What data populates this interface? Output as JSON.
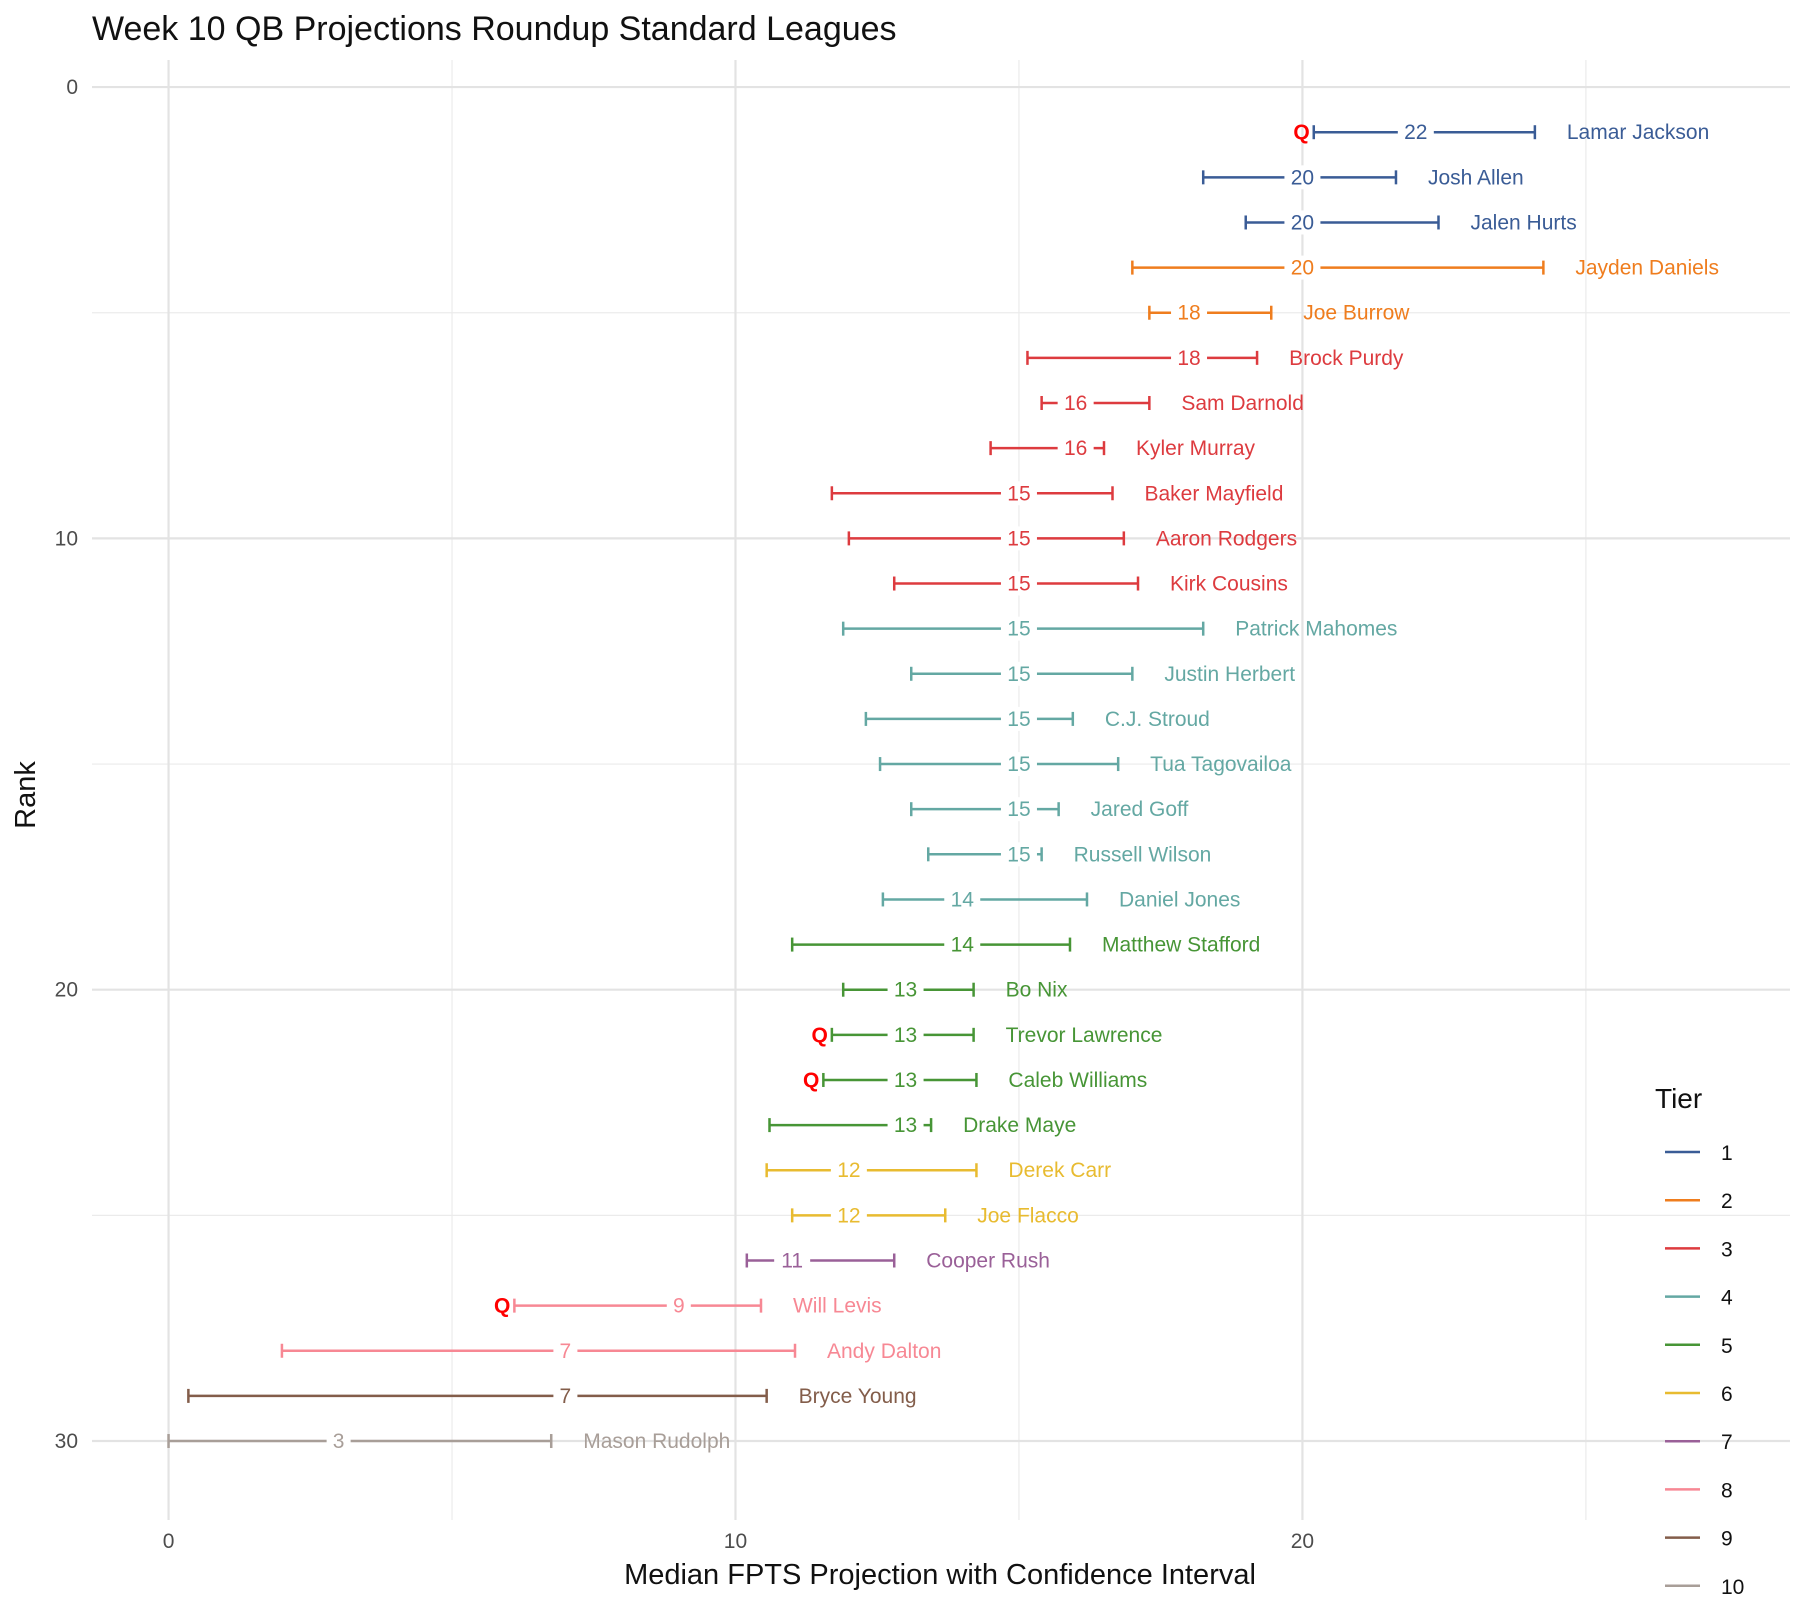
{
  "chart_data": {
    "type": "errorbar",
    "title": "Week 10 QB Projections Roundup Standard Leagues",
    "xlabel": "Median FPTS Projection with Confidence Interval",
    "ylabel": "Rank",
    "xlim": [
      -1.35,
      28.6
    ],
    "ylim": [
      -0.6,
      31.75
    ],
    "x_major_ticks": [
      0,
      10,
      20
    ],
    "x_minor_ticks": [
      5,
      15,
      25
    ],
    "y_major_ticks": [
      0,
      10,
      20,
      30
    ],
    "y_minor_ticks": [
      5,
      15,
      25
    ],
    "grid": true,
    "legend": {
      "title": "Tier",
      "position": "right",
      "entries": [
        {
          "label": "1",
          "color": "#3a5c96"
        },
        {
          "label": "2",
          "color": "#ef7d1e"
        },
        {
          "label": "3",
          "color": "#dd3b3f"
        },
        {
          "label": "4",
          "color": "#64a8a3"
        },
        {
          "label": "5",
          "color": "#479536"
        },
        {
          "label": "6",
          "color": "#e8bb30"
        },
        {
          "label": "7",
          "color": "#9a6098"
        },
        {
          "label": "8",
          "color": "#f78894"
        },
        {
          "label": "9",
          "color": "#835d4a"
        },
        {
          "label": "10",
          "color": "#a89e98"
        }
      ]
    },
    "points": [
      {
        "rank": 1,
        "player": "Lamar Jackson",
        "tier": 1,
        "median": 22,
        "low": 20.2,
        "high": 24.1,
        "q": true
      },
      {
        "rank": 2,
        "player": "Josh Allen",
        "tier": 1,
        "median": 20,
        "low": 18.25,
        "high": 21.65,
        "q": false
      },
      {
        "rank": 3,
        "player": "Jalen Hurts",
        "tier": 1,
        "median": 20,
        "low": 19.0,
        "high": 22.4,
        "q": false
      },
      {
        "rank": 4,
        "player": "Jayden Daniels",
        "tier": 2,
        "median": 20,
        "low": 17.0,
        "high": 24.25,
        "q": false
      },
      {
        "rank": 5,
        "player": "Joe Burrow",
        "tier": 2,
        "median": 18,
        "low": 17.3,
        "high": 19.45,
        "q": false
      },
      {
        "rank": 6,
        "player": "Brock Purdy",
        "tier": 3,
        "median": 18,
        "low": 15.15,
        "high": 19.2,
        "q": false
      },
      {
        "rank": 7,
        "player": "Sam Darnold",
        "tier": 3,
        "median": 16,
        "low": 15.4,
        "high": 17.3,
        "q": false
      },
      {
        "rank": 8,
        "player": "Kyler Murray",
        "tier": 3,
        "median": 16,
        "low": 14.5,
        "high": 16.5,
        "q": false
      },
      {
        "rank": 9,
        "player": "Baker Mayfield",
        "tier": 3,
        "median": 15,
        "low": 11.7,
        "high": 16.65,
        "q": false
      },
      {
        "rank": 10,
        "player": "Aaron Rodgers",
        "tier": 3,
        "median": 15,
        "low": 12.0,
        "high": 16.85,
        "q": false
      },
      {
        "rank": 11,
        "player": "Kirk Cousins",
        "tier": 3,
        "median": 15,
        "low": 12.8,
        "high": 17.1,
        "q": false
      },
      {
        "rank": 12,
        "player": "Patrick Mahomes",
        "tier": 4,
        "median": 15,
        "low": 11.9,
        "high": 18.25,
        "q": false
      },
      {
        "rank": 13,
        "player": "Justin Herbert",
        "tier": 4,
        "median": 15,
        "low": 13.1,
        "high": 17.0,
        "q": false
      },
      {
        "rank": 14,
        "player": "C.J. Stroud",
        "tier": 4,
        "median": 15,
        "low": 12.3,
        "high": 15.95,
        "q": false
      },
      {
        "rank": 15,
        "player": "Tua Tagovailoa",
        "tier": 4,
        "median": 15,
        "low": 12.55,
        "high": 16.75,
        "q": false
      },
      {
        "rank": 16,
        "player": "Jared Goff",
        "tier": 4,
        "median": 15,
        "low": 13.1,
        "high": 15.7,
        "q": false
      },
      {
        "rank": 17,
        "player": "Russell Wilson",
        "tier": 4,
        "median": 15,
        "low": 13.4,
        "high": 15.4,
        "q": false
      },
      {
        "rank": 18,
        "player": "Daniel Jones",
        "tier": 4,
        "median": 14,
        "low": 12.6,
        "high": 16.2,
        "q": false
      },
      {
        "rank": 19,
        "player": "Matthew Stafford",
        "tier": 5,
        "median": 14,
        "low": 11.0,
        "high": 15.9,
        "q": false
      },
      {
        "rank": 20,
        "player": "Bo Nix",
        "tier": 5,
        "median": 13,
        "low": 11.9,
        "high": 14.2,
        "q": false
      },
      {
        "rank": 21,
        "player": "Trevor Lawrence",
        "tier": 5,
        "median": 13,
        "low": 11.7,
        "high": 14.2,
        "q": true
      },
      {
        "rank": 22,
        "player": "Caleb Williams",
        "tier": 5,
        "median": 13,
        "low": 11.55,
        "high": 14.25,
        "q": true
      },
      {
        "rank": 23,
        "player": "Drake Maye",
        "tier": 5,
        "median": 13,
        "low": 10.6,
        "high": 13.45,
        "q": false
      },
      {
        "rank": 24,
        "player": "Derek Carr",
        "tier": 6,
        "median": 12,
        "low": 10.55,
        "high": 14.25,
        "q": false
      },
      {
        "rank": 25,
        "player": "Joe Flacco",
        "tier": 6,
        "median": 12,
        "low": 11.0,
        "high": 13.7,
        "q": false
      },
      {
        "rank": 26,
        "player": "Cooper Rush",
        "tier": 7,
        "median": 11,
        "low": 10.2,
        "high": 12.8,
        "q": false
      },
      {
        "rank": 27,
        "player": "Will Levis",
        "tier": 8,
        "median": 9,
        "low": 6.1,
        "high": 10.45,
        "q": true
      },
      {
        "rank": 28,
        "player": "Andy Dalton",
        "tier": 8,
        "median": 7,
        "low": 2.0,
        "high": 11.05,
        "q": false
      },
      {
        "rank": 29,
        "player": "Bryce Young",
        "tier": 9,
        "median": 7,
        "low": 0.35,
        "high": 10.55,
        "q": false
      },
      {
        "rank": 30,
        "player": "Mason Rudolph",
        "tier": 10,
        "median": 3,
        "low": 0.0,
        "high": 6.75,
        "q": false
      }
    ],
    "q_marker_text": "Q",
    "q_marker_color": "#ff0000"
  }
}
